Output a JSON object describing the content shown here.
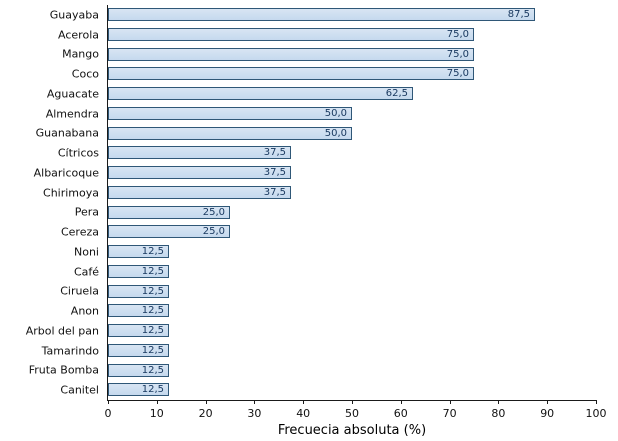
{
  "chart_data": {
    "type": "bar",
    "orientation": "horizontal",
    "title": "",
    "xlabel": "Frecuecia absoluta (%)",
    "ylabel": "",
    "xlim": [
      0,
      100
    ],
    "xticks": [
      0,
      10,
      20,
      30,
      40,
      50,
      60,
      70,
      80,
      90,
      100
    ],
    "grid": false,
    "legend": false,
    "categories": [
      "Guayaba",
      "Acerola",
      "Mango",
      "Coco",
      "Aguacate",
      "Almendra",
      "Guanabana",
      "Cítricos",
      "Albaricoque",
      "Chirimoya",
      "Pera",
      "Cereza",
      "Noni",
      "Café",
      "Ciruela",
      "Anon",
      "Arbol del pan",
      "Tamarindo",
      "Fruta Bomba",
      "Canitel"
    ],
    "values": [
      87.5,
      75.0,
      75.0,
      75.0,
      62.5,
      50.0,
      50.0,
      37.5,
      37.5,
      37.5,
      25.0,
      25.0,
      12.5,
      12.5,
      12.5,
      12.5,
      12.5,
      12.5,
      12.5,
      12.5
    ],
    "value_labels": [
      "87,5",
      "75,0",
      "75,0",
      "75,0",
      "62,5",
      "50,0",
      "50,0",
      "37,5",
      "37,5",
      "37,5",
      "25,0",
      "25,0",
      "12,5",
      "12,5",
      "12,5",
      "12,5",
      "12,5",
      "12,5",
      "12,5",
      "12,5"
    ],
    "colors": {
      "bar_fill": "#c5d9ee",
      "bar_border": "#2f5777",
      "value_text": "#17375e",
      "axis": "#1a1a1a"
    }
  }
}
